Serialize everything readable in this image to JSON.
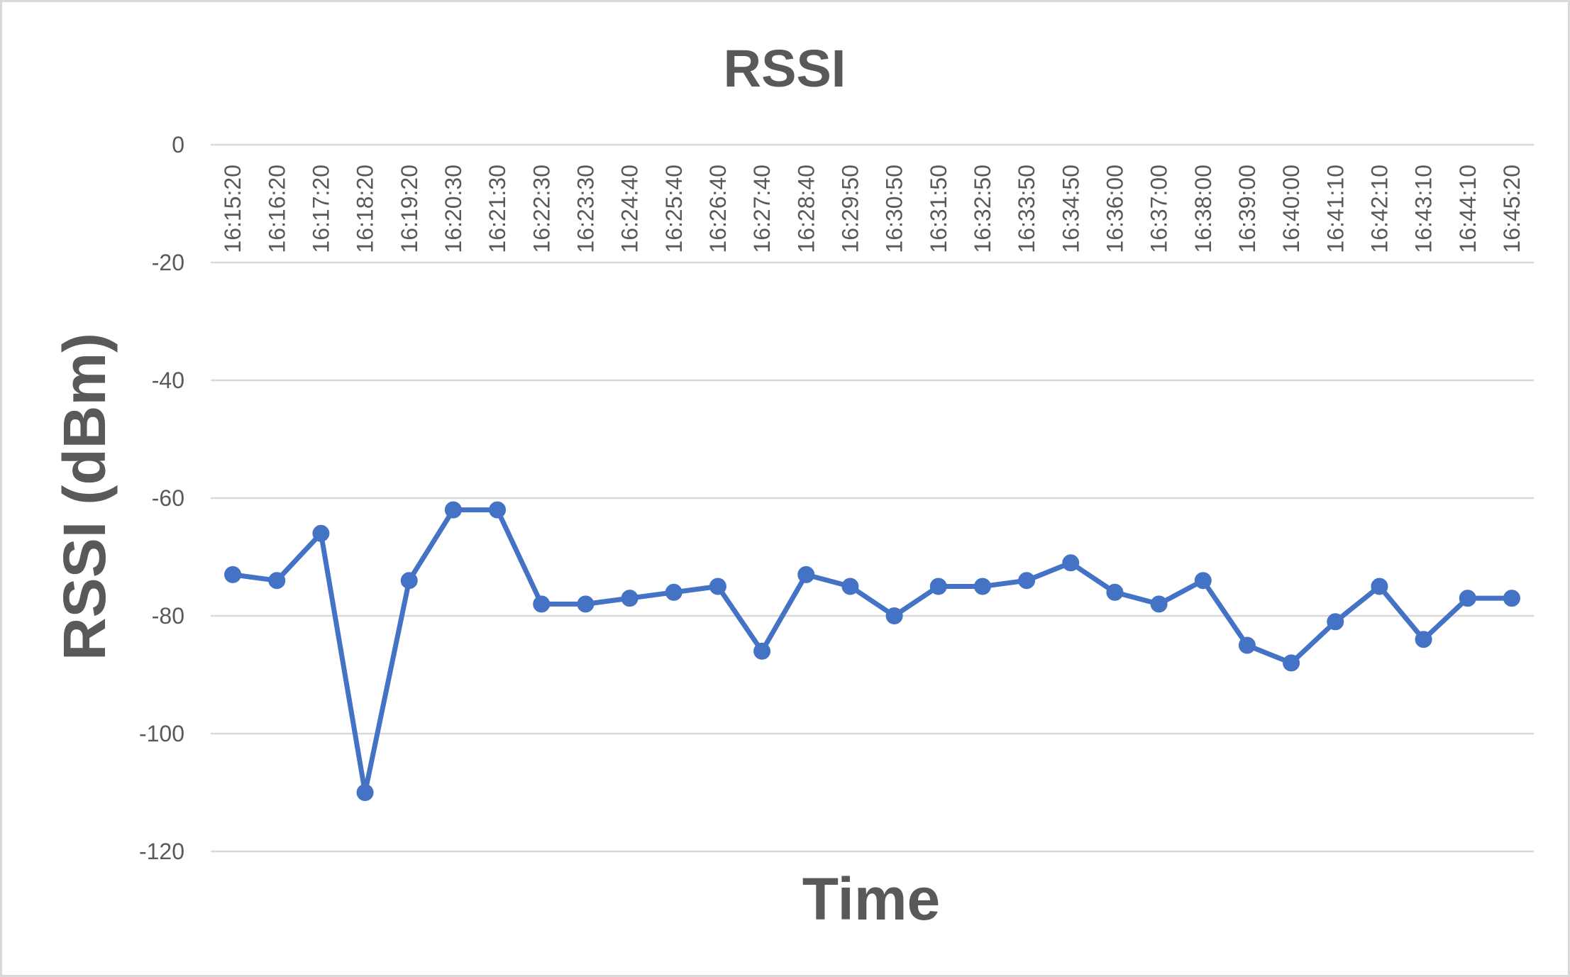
{
  "chart_data": {
    "type": "line",
    "title": "RSSI",
    "xlabel": "Time",
    "ylabel": "RSSI (dBm)",
    "ylim": [
      -120,
      0
    ],
    "yticks": [
      0,
      -20,
      -40,
      -60,
      -80,
      -100,
      -120
    ],
    "grid": true,
    "legend": "none",
    "categories": [
      "16:15:20",
      "16:16:20",
      "16:17:20",
      "16:18:20",
      "16:19:20",
      "16:20:30",
      "16:21:30",
      "16:22:30",
      "16:23:30",
      "16:24:40",
      "16:25:40",
      "16:26:40",
      "16:27:40",
      "16:28:40",
      "16:29:50",
      "16:30:50",
      "16:31:50",
      "16:32:50",
      "16:33:50",
      "16:34:50",
      "16:36:00",
      "16:37:00",
      "16:38:00",
      "16:39:00",
      "16:40:00",
      "16:41:10",
      "16:42:10",
      "16:43:10",
      "16:44:10",
      "16:45:20"
    ],
    "series": [
      {
        "color": "#4472c4",
        "values": [
          -73,
          -74,
          -66,
          -110,
          -74,
          -62,
          -62,
          -78,
          -78,
          -77,
          -76,
          -75,
          -86,
          -73,
          -75,
          -80,
          -75,
          -75,
          -74,
          -71,
          -76,
          -78,
          -74,
          -85,
          -88,
          -81,
          -75,
          -84,
          -77,
          -77
        ]
      }
    ]
  }
}
